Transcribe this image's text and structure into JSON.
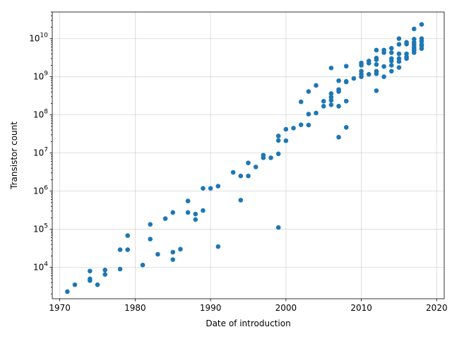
{
  "chart_data": {
    "type": "scatter",
    "title": "",
    "xlabel": "Date of introduction",
    "ylabel": "Transistor count",
    "xlim": [
      1969,
      2021
    ],
    "ylim": [
      1500,
      50000000000
    ],
    "yscale": "log",
    "grid": true,
    "marker_color": "#1f77b4",
    "x_ticks": [
      1970,
      1980,
      1990,
      2000,
      2010,
      2020
    ],
    "x_tick_labels": [
      "1970",
      "1980",
      "1990",
      "2000",
      "2010",
      "2020"
    ],
    "y_ticks": [
      10000,
      100000,
      1000000,
      10000000,
      100000000,
      1000000000,
      10000000000
    ],
    "y_tick_labels": [
      {
        "base": "10",
        "exp": "4"
      },
      {
        "base": "10",
        "exp": "5"
      },
      {
        "base": "10",
        "exp": "6"
      },
      {
        "base": "10",
        "exp": "7"
      },
      {
        "base": "10",
        "exp": "8"
      },
      {
        "base": "10",
        "exp": "9"
      },
      {
        "base": "10",
        "exp": "10"
      }
    ],
    "points": [
      [
        1971,
        2300
      ],
      [
        1972,
        3500
      ],
      [
        1974,
        4500
      ],
      [
        1974,
        5000
      ],
      [
        1974,
        8000
      ],
      [
        1975,
        3500
      ],
      [
        1976,
        6500
      ],
      [
        1976,
        8500
      ],
      [
        1978,
        9000
      ],
      [
        1978,
        29000
      ],
      [
        1979,
        29000
      ],
      [
        1979,
        68000
      ],
      [
        1981,
        11500
      ],
      [
        1982,
        55000
      ],
      [
        1982,
        134000
      ],
      [
        1983,
        22000
      ],
      [
        1984,
        190000
      ],
      [
        1985,
        16000
      ],
      [
        1985,
        25000
      ],
      [
        1985,
        275000
      ],
      [
        1986,
        30000
      ],
      [
        1987,
        275000
      ],
      [
        1987,
        550000
      ],
      [
        1988,
        180000
      ],
      [
        1988,
        250000
      ],
      [
        1989,
        310000
      ],
      [
        1989,
        1180000
      ],
      [
        1990,
        1180000
      ],
      [
        1991,
        35000
      ],
      [
        1991,
        1350000
      ],
      [
        1993,
        3100000
      ],
      [
        1994,
        580000
      ],
      [
        1994,
        2500000
      ],
      [
        1995,
        2500000
      ],
      [
        1995,
        5500000
      ],
      [
        1996,
        4300000
      ],
      [
        1997,
        7500000
      ],
      [
        1997,
        8800000
      ],
      [
        1998,
        7500000
      ],
      [
        1999,
        111000
      ],
      [
        1999,
        9500000
      ],
      [
        1999,
        21300000
      ],
      [
        1999,
        28000000
      ],
      [
        2000,
        21000000
      ],
      [
        2000,
        42000000
      ],
      [
        2001,
        45000000
      ],
      [
        2002,
        55000000
      ],
      [
        2002,
        220000000
      ],
      [
        2003,
        54000000
      ],
      [
        2003,
        105000000
      ],
      [
        2003,
        410000000
      ],
      [
        2004,
        112000000
      ],
      [
        2004,
        592000000
      ],
      [
        2005,
        169000000
      ],
      [
        2005,
        228000000
      ],
      [
        2006,
        184000000
      ],
      [
        2006,
        241000000
      ],
      [
        2006,
        291000000
      ],
      [
        2006,
        362000000
      ],
      [
        2006,
        1700000000
      ],
      [
        2007,
        26000000
      ],
      [
        2007,
        169000000
      ],
      [
        2007,
        411000000
      ],
      [
        2007,
        463000000
      ],
      [
        2007,
        789000000
      ],
      [
        2008,
        47000000
      ],
      [
        2008,
        230000000
      ],
      [
        2008,
        731000000
      ],
      [
        2008,
        758000000
      ],
      [
        2008,
        1900000000
      ],
      [
        2009,
        904000000
      ],
      [
        2010,
        1000000000
      ],
      [
        2010,
        1170000000
      ],
      [
        2010,
        1400000000
      ],
      [
        2010,
        2000000000
      ],
      [
        2010,
        2300000000
      ],
      [
        2011,
        1160000000
      ],
      [
        2011,
        2270000000
      ],
      [
        2011,
        2600000000
      ],
      [
        2012,
        432000000
      ],
      [
        2012,
        1200000000
      ],
      [
        2012,
        1400000000
      ],
      [
        2012,
        2100000000
      ],
      [
        2012,
        2800000000
      ],
      [
        2012,
        3100000000
      ],
      [
        2012,
        5000000000
      ],
      [
        2013,
        1000000000
      ],
      [
        2013,
        1860000000
      ],
      [
        2013,
        4300000000
      ],
      [
        2013,
        5000000000
      ],
      [
        2014,
        1400000000
      ],
      [
        2014,
        2000000000
      ],
      [
        2014,
        2600000000
      ],
      [
        2014,
        3000000000
      ],
      [
        2014,
        4300000000
      ],
      [
        2014,
        5600000000
      ],
      [
        2015,
        1750000000
      ],
      [
        2015,
        2500000000
      ],
      [
        2015,
        3000000000
      ],
      [
        2015,
        4000000000
      ],
      [
        2015,
        7100000000
      ],
      [
        2015,
        10000000000
      ],
      [
        2016,
        3000000000
      ],
      [
        2016,
        3300000000
      ],
      [
        2016,
        4000000000
      ],
      [
        2016,
        7200000000
      ],
      [
        2016,
        8000000000
      ],
      [
        2017,
        4300000000
      ],
      [
        2017,
        4800000000
      ],
      [
        2017,
        5300000000
      ],
      [
        2017,
        6000000000
      ],
      [
        2017,
        7000000000
      ],
      [
        2017,
        8000000000
      ],
      [
        2017,
        9700000000
      ],
      [
        2017,
        18000000000
      ],
      [
        2018,
        5500000000
      ],
      [
        2018,
        6500000000
      ],
      [
        2018,
        7000000000
      ],
      [
        2018,
        8500000000
      ],
      [
        2018,
        10000000000
      ],
      [
        2018,
        23600000000
      ]
    ]
  }
}
